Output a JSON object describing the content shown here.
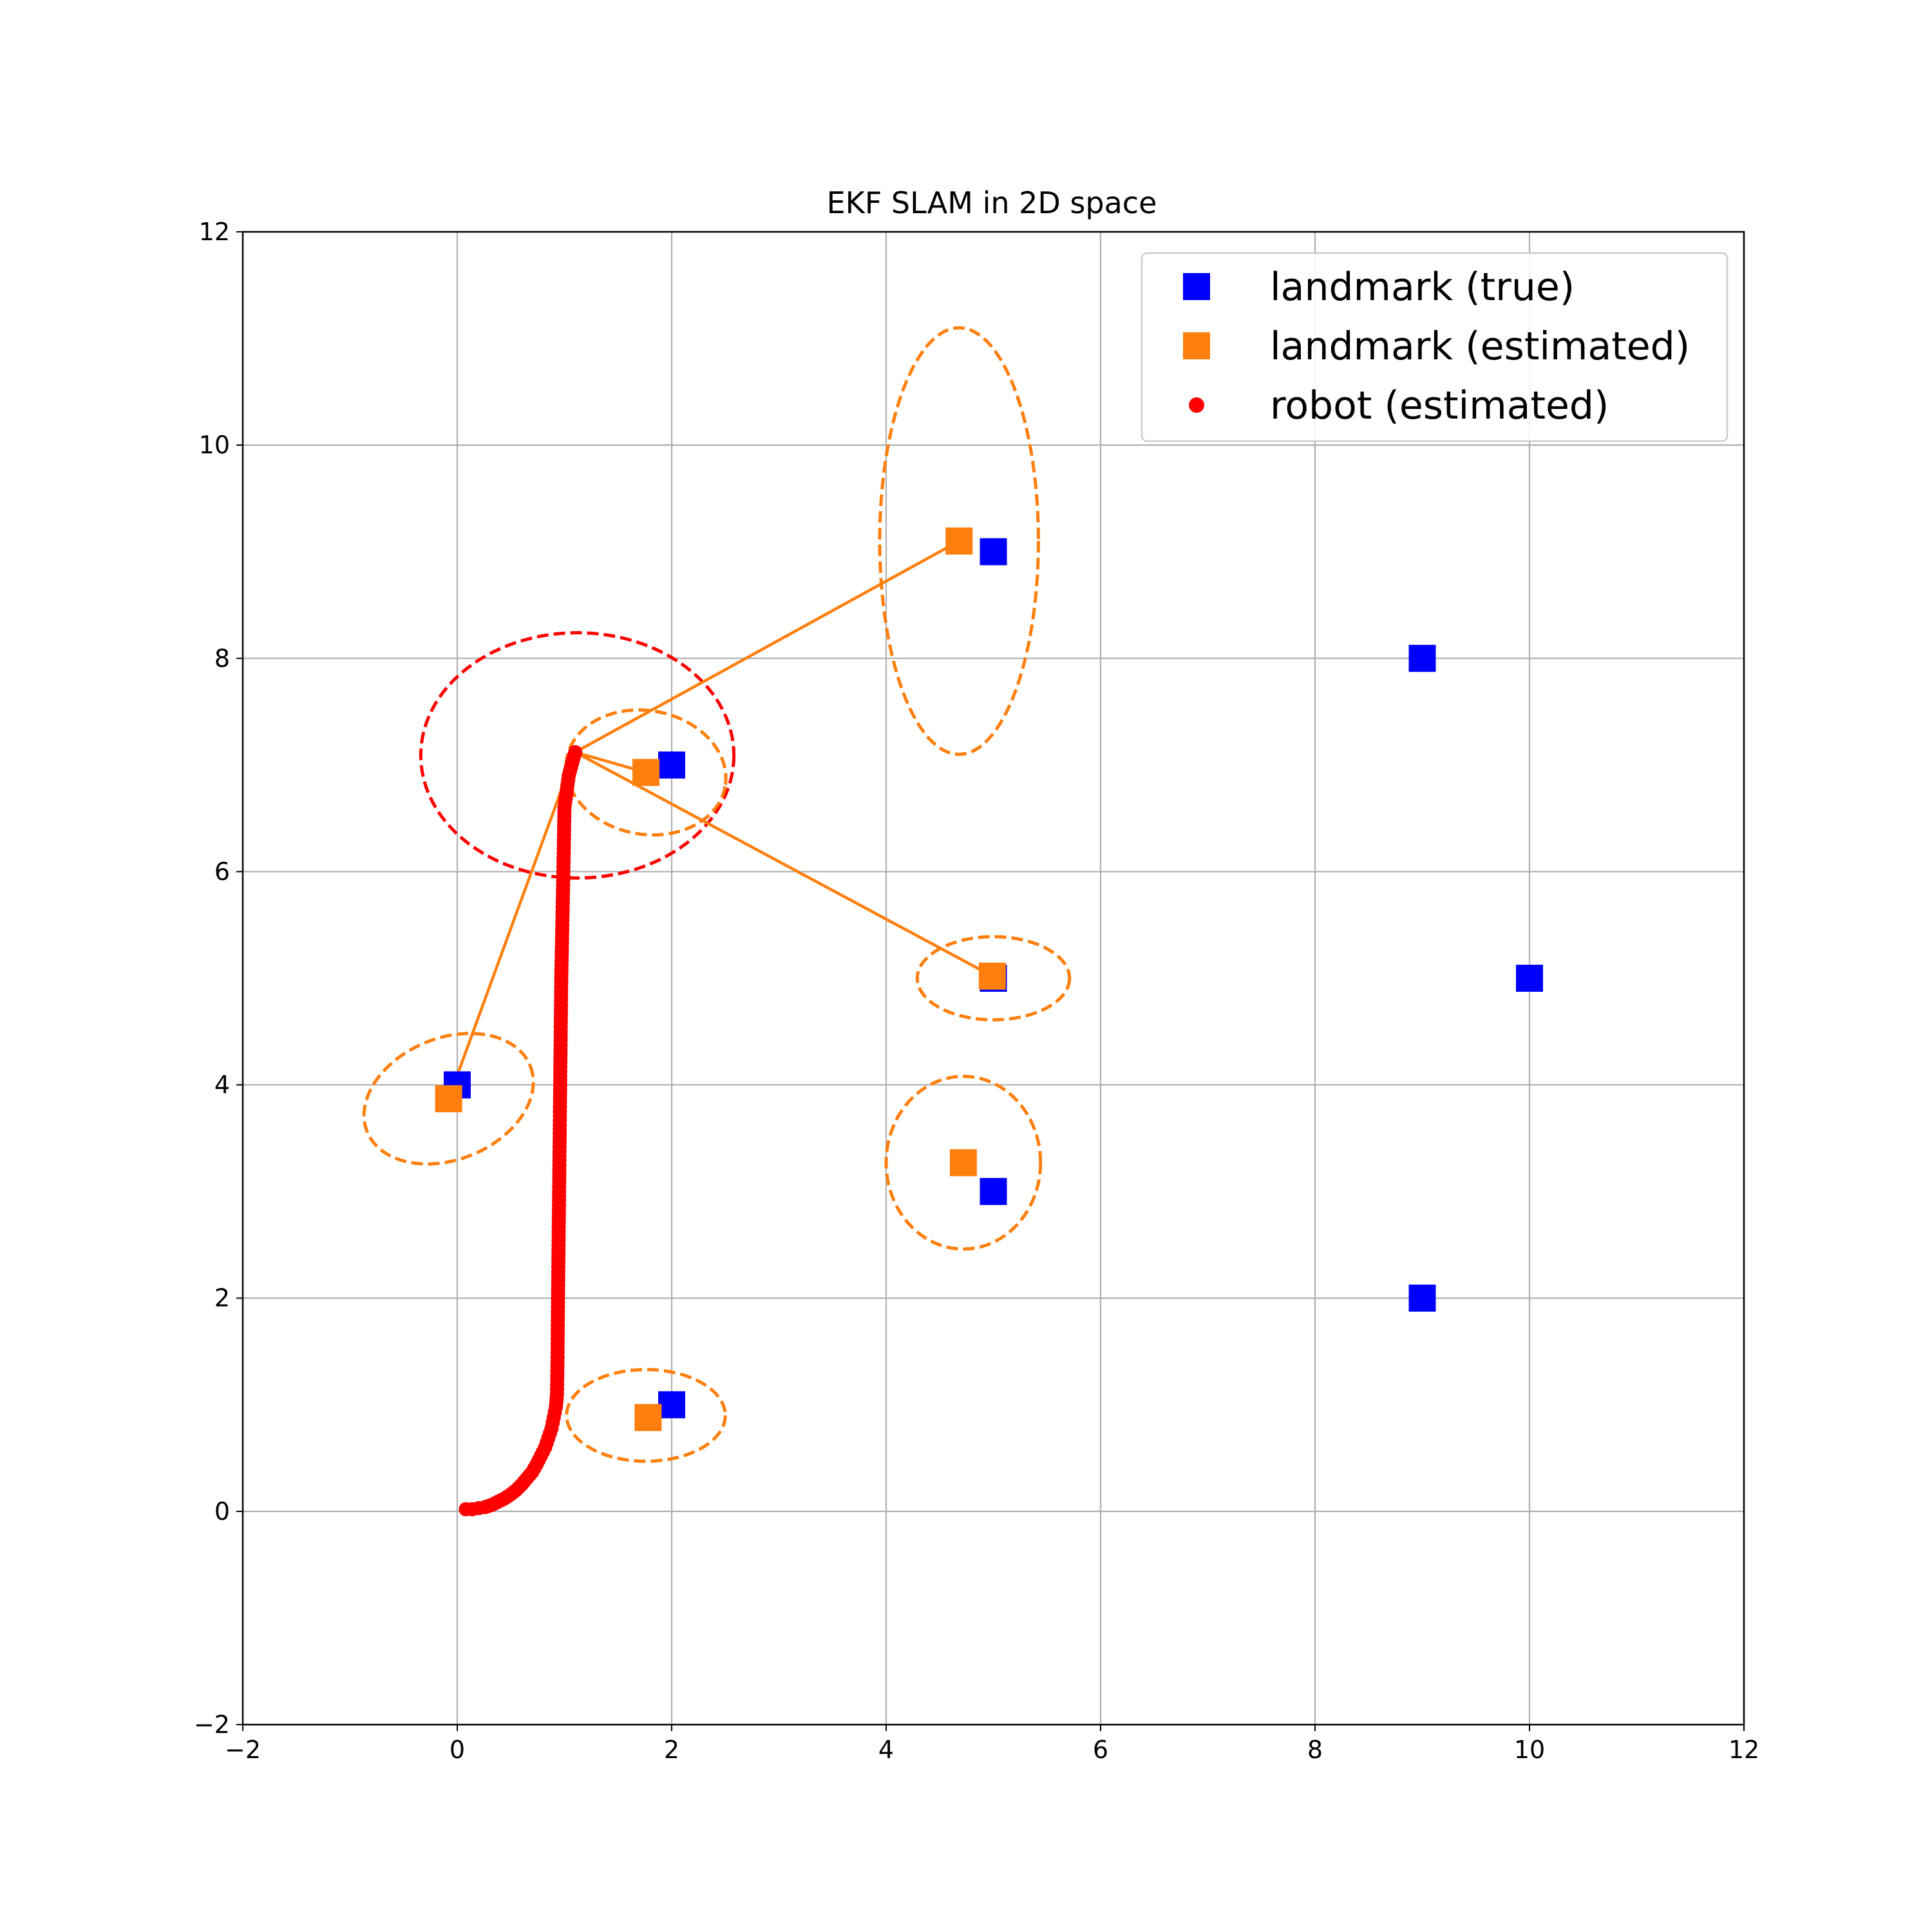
{
  "chart_data": {
    "type": "scatter",
    "title": "EKF SLAM in 2D space",
    "xlabel": "",
    "ylabel": "",
    "xlim": [
      -2,
      12
    ],
    "ylim": [
      -2,
      12
    ],
    "xticks": [
      -2,
      0,
      2,
      4,
      6,
      8,
      10,
      12
    ],
    "yticks": [
      -2,
      0,
      2,
      4,
      6,
      8,
      10,
      12
    ],
    "xtick_labels": [
      "−2",
      "0",
      "2",
      "4",
      "6",
      "8",
      "10",
      "12"
    ],
    "ytick_labels": [
      "−2",
      "0",
      "2",
      "4",
      "6",
      "8",
      "10",
      "12"
    ],
    "grid": true,
    "legend_position": "upper right",
    "colors": {
      "true": "#0000ff",
      "estimated": "#ff7f0e",
      "robot": "#ff0000"
    },
    "legend": [
      {
        "label": "landmark (true)",
        "marker": "square",
        "color": "#0000ff"
      },
      {
        "label": "landmark (estimated)",
        "marker": "square",
        "color": "#ff7f0e"
      },
      {
        "label": "robot (estimated)",
        "marker": "circle",
        "color": "#ff0000"
      }
    ],
    "landmarks_true": [
      {
        "x": 0,
        "y": 4
      },
      {
        "x": 2,
        "y": 7
      },
      {
        "x": 5,
        "y": 9
      },
      {
        "x": 5,
        "y": 5
      },
      {
        "x": 5,
        "y": 3
      },
      {
        "x": 2,
        "y": 1
      },
      {
        "x": 9,
        "y": 8
      },
      {
        "x": 10,
        "y": 5
      },
      {
        "x": 9,
        "y": 2
      }
    ],
    "landmarks_estimated": [
      {
        "x": -0.08,
        "y": 3.87
      },
      {
        "x": 1.76,
        "y": 6.93
      },
      {
        "x": 4.68,
        "y": 9.1
      },
      {
        "x": 4.99,
        "y": 5.02
      },
      {
        "x": 4.72,
        "y": 3.27
      },
      {
        "x": 1.78,
        "y": 0.88
      }
    ],
    "landmark_ellipses": [
      {
        "cx": -0.08,
        "cy": 3.87,
        "rx": 0.82,
        "ry": 0.57,
        "angle": 22
      },
      {
        "cx": 1.76,
        "cy": 6.93,
        "rx": 0.75,
        "ry": 0.58,
        "angle": -10
      },
      {
        "cx": 4.68,
        "cy": 9.1,
        "rx": 0.74,
        "ry": 2.0,
        "angle": 0
      },
      {
        "cx": 5.0,
        "cy": 5.0,
        "rx": 0.71,
        "ry": 0.39,
        "angle": 0
      },
      {
        "cx": 4.72,
        "cy": 3.27,
        "rx": 0.72,
        "ry": 0.81,
        "angle": 0
      },
      {
        "cx": 1.76,
        "cy": 0.9,
        "rx": 0.74,
        "ry": 0.43,
        "angle": 0
      }
    ],
    "robot_ellipse": {
      "cx": 1.12,
      "cy": 7.09,
      "rx": 1.46,
      "ry": 1.15,
      "angle": 0
    },
    "robot_position": {
      "x": 1.1,
      "y": 7.12
    },
    "observation_targets": [
      {
        "x": -0.08,
        "y": 3.87
      },
      {
        "x": 1.76,
        "y": 6.93
      },
      {
        "x": 4.68,
        "y": 9.1
      },
      {
        "x": 4.99,
        "y": 5.02
      }
    ],
    "robot_path": [
      {
        "x": 0.08,
        "y": 0.02
      },
      {
        "x": 0.14,
        "y": 0.02
      },
      {
        "x": 0.2,
        "y": 0.03
      },
      {
        "x": 0.26,
        "y": 0.04
      },
      {
        "x": 0.32,
        "y": 0.06
      },
      {
        "x": 0.38,
        "y": 0.09
      },
      {
        "x": 0.44,
        "y": 0.12
      },
      {
        "x": 0.5,
        "y": 0.16
      },
      {
        "x": 0.55,
        "y": 0.2
      },
      {
        "x": 0.6,
        "y": 0.25
      },
      {
        "x": 0.65,
        "y": 0.31
      },
      {
        "x": 0.7,
        "y": 0.37
      },
      {
        "x": 0.74,
        "y": 0.44
      },
      {
        "x": 0.78,
        "y": 0.52
      },
      {
        "x": 0.82,
        "y": 0.6
      },
      {
        "x": 0.85,
        "y": 0.69
      },
      {
        "x": 0.88,
        "y": 0.78
      },
      {
        "x": 0.9,
        "y": 0.88
      },
      {
        "x": 0.92,
        "y": 0.98
      },
      {
        "x": 0.93,
        "y": 1.1
      },
      {
        "x": 0.935,
        "y": 1.4
      },
      {
        "x": 0.94,
        "y": 2.0
      },
      {
        "x": 0.95,
        "y": 3.0
      },
      {
        "x": 0.96,
        "y": 4.0
      },
      {
        "x": 0.97,
        "y": 5.0
      },
      {
        "x": 0.99,
        "y": 6.0
      },
      {
        "x": 1.0,
        "y": 6.6
      },
      {
        "x": 1.04,
        "y": 6.9
      },
      {
        "x": 1.08,
        "y": 7.05
      },
      {
        "x": 1.1,
        "y": 7.12
      }
    ]
  }
}
